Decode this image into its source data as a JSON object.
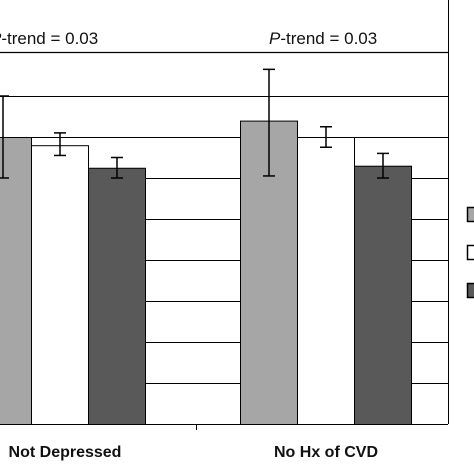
{
  "chart_data": {
    "type": "bar",
    "categories": [
      "Not Depressed",
      "No Hx of CVD"
    ],
    "series": [
      {
        "color": "#a6a6a6",
        "values": [
          140,
          148
        ],
        "err_low": [
          120,
          121
        ],
        "err_high": [
          160,
          173
        ]
      },
      {
        "color": "#ffffff",
        "values": [
          136,
          140
        ],
        "err_low": [
          131,
          135
        ],
        "err_high": [
          142,
          145
        ]
      },
      {
        "color": "#595959",
        "values": [
          125,
          126
        ],
        "err_low": [
          120,
          120
        ],
        "err_high": [
          130,
          132
        ]
      }
    ],
    "ylim": [
      0,
      180
    ],
    "grid": true,
    "annotations": [
      {
        "prefix": "P",
        "text": "-trend = 0.03"
      },
      {
        "prefix": "P",
        "text": "-trend = 0.03"
      }
    ],
    "legend": {
      "placement": "right",
      "colors": [
        "#a6a6a6",
        "#ffffff",
        "#595959"
      ]
    }
  }
}
